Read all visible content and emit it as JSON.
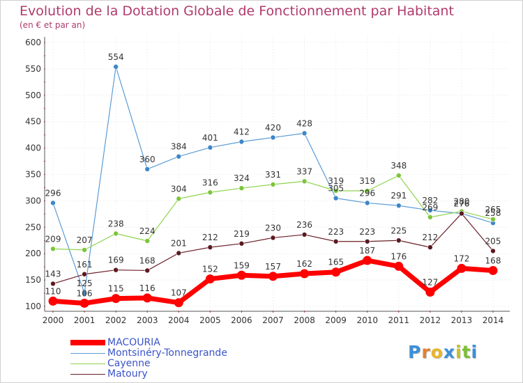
{
  "title": "Evolution de la Dotation Globale de Fonctionnement par Habitant",
  "subtitle": "(en € et par an)",
  "logo": {
    "text": "Proxiti"
  },
  "chart_data": {
    "type": "line",
    "title": "Evolution de la Dotation Globale de Fonctionnement par Habitant",
    "ylabel": "(en € et par an)",
    "xlabel": "",
    "categories": [
      "2000",
      "2001",
      "2002",
      "2003",
      "2004",
      "2005",
      "2006",
      "2007",
      "2008",
      "2009",
      "2010",
      "2011",
      "2012",
      "2013",
      "2014"
    ],
    "ylim": [
      100,
      600
    ],
    "yticks": [
      100,
      150,
      200,
      250,
      300,
      350,
      400,
      450,
      500,
      550,
      600
    ],
    "grid": true,
    "legend": "bottom-left",
    "series": [
      {
        "name": "MACOURIA",
        "color": "#ff0000",
        "values": [
          110,
          106,
          115,
          116,
          107,
          152,
          159,
          157,
          162,
          165,
          187,
          176,
          127,
          172,
          168
        ]
      },
      {
        "name": "Montsinéry-Tonnegrande",
        "color": "#5b9bd5",
        "values": [
          296,
          125,
          554,
          360,
          384,
          401,
          412,
          420,
          428,
          305,
          296,
          291,
          282,
          276,
          258
        ]
      },
      {
        "name": "Cayenne",
        "color": "#8fd44c",
        "values": [
          209,
          207,
          238,
          224,
          304,
          316,
          324,
          331,
          337,
          319,
          319,
          348,
          269,
          280,
          265
        ]
      },
      {
        "name": "Matoury",
        "color": "#6b1f26",
        "values": [
          143,
          161,
          169,
          168,
          201,
          212,
          219,
          230,
          236,
          223,
          223,
          225,
          212,
          276,
          205
        ]
      }
    ]
  }
}
